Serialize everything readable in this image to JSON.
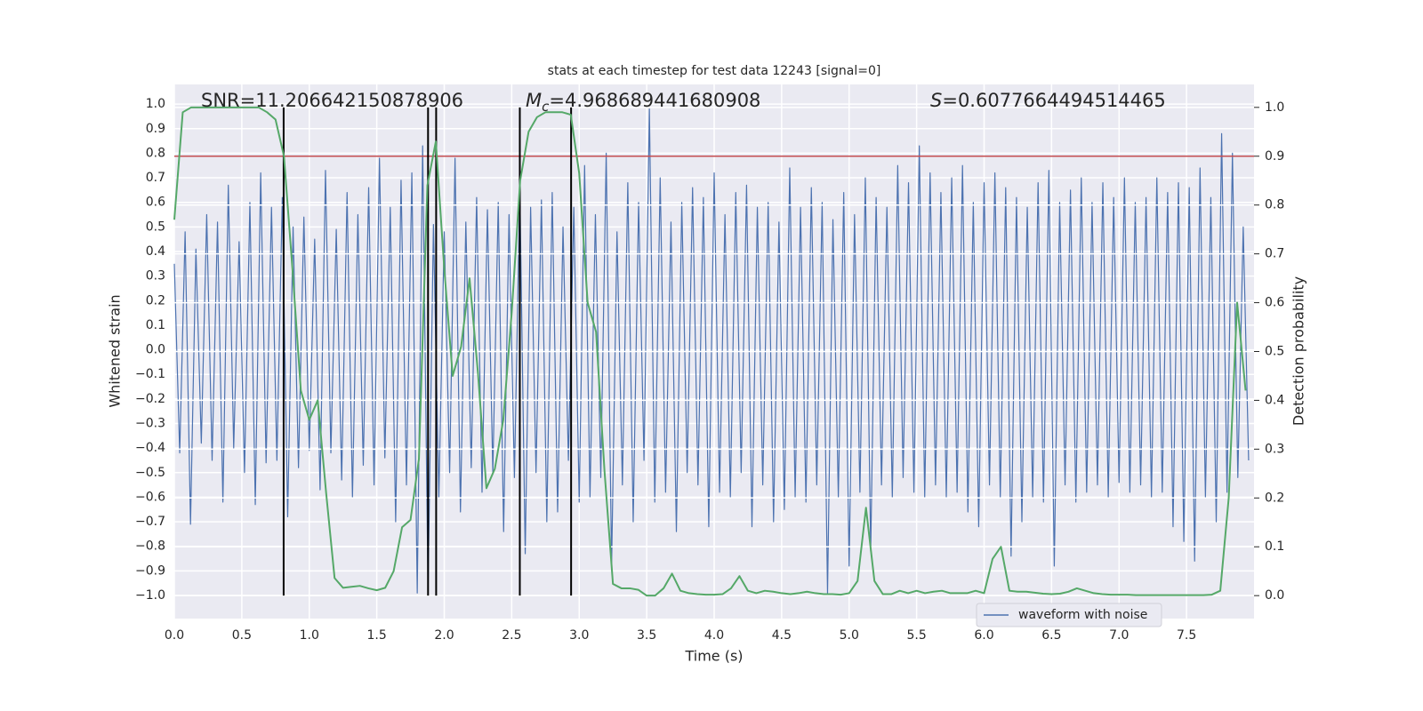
{
  "chart_data": {
    "type": "line",
    "title": "stats at each timestep for test data 12243 [signal=0]",
    "xlabel": "Time (s)",
    "ylabel": "Whitened strain",
    "y2label": "Detection probability",
    "xlim": [
      0,
      8
    ],
    "ylim": [
      -1.094,
      1.08
    ],
    "y2lim": [
      -0.047,
      1.047
    ],
    "xticks": [
      {
        "value": 0,
        "label": "0.0"
      },
      {
        "value": 0.5,
        "label": "0.5"
      },
      {
        "value": 1,
        "label": "1.0"
      },
      {
        "value": 1.5,
        "label": "1.5"
      },
      {
        "value": 2,
        "label": "2.0"
      },
      {
        "value": 2.5,
        "label": "2.5"
      },
      {
        "value": 3,
        "label": "3.0"
      },
      {
        "value": 3.5,
        "label": "3.5"
      },
      {
        "value": 4,
        "label": "4.0"
      },
      {
        "value": 4.5,
        "label": "4.5"
      },
      {
        "value": 5,
        "label": "5.0"
      },
      {
        "value": 5.5,
        "label": "5.5"
      },
      {
        "value": 6,
        "label": "6.0"
      },
      {
        "value": 6.5,
        "label": "6.5"
      },
      {
        "value": 7,
        "label": "7.0"
      },
      {
        "value": 7.5,
        "label": "7.5"
      }
    ],
    "yticks": [
      {
        "value": -1,
        "label": "−1.0"
      },
      {
        "value": -0.9,
        "label": "−0.9"
      },
      {
        "value": -0.8,
        "label": "−0.8"
      },
      {
        "value": -0.7,
        "label": "−0.7"
      },
      {
        "value": -0.6,
        "label": "−0.6"
      },
      {
        "value": -0.5,
        "label": "−0.5"
      },
      {
        "value": -0.4,
        "label": "−0.4"
      },
      {
        "value": -0.3,
        "label": "−0.3"
      },
      {
        "value": -0.2,
        "label": "−0.2"
      },
      {
        "value": -0.1,
        "label": "−0.1"
      },
      {
        "value": 0,
        "label": "0.0"
      },
      {
        "value": 0.1,
        "label": "0.1"
      },
      {
        "value": 0.2,
        "label": "0.2"
      },
      {
        "value": 0.3,
        "label": "0.3"
      },
      {
        "value": 0.4,
        "label": "0.4"
      },
      {
        "value": 0.5,
        "label": "0.5"
      },
      {
        "value": 0.6,
        "label": "0.6"
      },
      {
        "value": 0.7,
        "label": "0.7"
      },
      {
        "value": 0.8,
        "label": "0.8"
      },
      {
        "value": 0.9,
        "label": "0.9"
      },
      {
        "value": 1,
        "label": "1.0"
      }
    ],
    "y2ticks": [
      {
        "value": 0,
        "label": "0.0"
      },
      {
        "value": 0.1,
        "label": "0.1"
      },
      {
        "value": 0.2,
        "label": "0.2"
      },
      {
        "value": 0.3,
        "label": "0.3"
      },
      {
        "value": 0.4,
        "label": "0.4"
      },
      {
        "value": 0.5,
        "label": "0.5"
      },
      {
        "value": 0.6,
        "label": "0.6"
      },
      {
        "value": 0.7,
        "label": "0.7"
      },
      {
        "value": 0.8,
        "label": "0.8"
      },
      {
        "value": 0.9,
        "label": "0.9"
      },
      {
        "value": 1,
        "label": "1.0"
      }
    ],
    "grid": true,
    "legend": "lower right",
    "annotations": [
      {
        "text": "SNR=11.206642150878906"
      },
      {
        "symbol": "M",
        "subscript": "c",
        "text": "=4.968689441680908"
      },
      {
        "symbol": "S",
        "text": "=0.6077664494514465"
      }
    ],
    "threshold": {
      "axis": "y2",
      "value": 0.9,
      "color": "#c44e52"
    },
    "vlines": {
      "x": [
        0.81,
        1.88,
        1.94,
        2.56,
        2.94
      ],
      "y2range": [
        0,
        1
      ],
      "color": "#000000"
    },
    "series": [
      {
        "name": "waveform with noise",
        "color": "#4c72b0",
        "axis": "y",
        "x": [
          0,
          0.04,
          0.08,
          0.12,
          0.16,
          0.2,
          0.24,
          0.28,
          0.32,
          0.36,
          0.4,
          0.44,
          0.48,
          0.52,
          0.56,
          0.6,
          0.64,
          0.68,
          0.72,
          0.76,
          0.8,
          0.84,
          0.88,
          0.92,
          0.96,
          1,
          1.04,
          1.08,
          1.12,
          1.16,
          1.2,
          1.24,
          1.28,
          1.32,
          1.36,
          1.4,
          1.44,
          1.48,
          1.52,
          1.56,
          1.6,
          1.64,
          1.68,
          1.72,
          1.76,
          1.8,
          1.84,
          1.88,
          1.92,
          1.96,
          2,
          2.04,
          2.08,
          2.12,
          2.16,
          2.2,
          2.24,
          2.28,
          2.32,
          2.36,
          2.4,
          2.44,
          2.48,
          2.52,
          2.56,
          2.6,
          2.64,
          2.68,
          2.72,
          2.76,
          2.8,
          2.84,
          2.88,
          2.92,
          2.96,
          3,
          3.04,
          3.08,
          3.12,
          3.16,
          3.2,
          3.24,
          3.28,
          3.32,
          3.36,
          3.4,
          3.44,
          3.48,
          3.52,
          3.56,
          3.6,
          3.64,
          3.68,
          3.72,
          3.76,
          3.8,
          3.84,
          3.88,
          3.92,
          3.96,
          4,
          4.04,
          4.08,
          4.12,
          4.16,
          4.2,
          4.24,
          4.28,
          4.32,
          4.36,
          4.4,
          4.44,
          4.48,
          4.52,
          4.56,
          4.6,
          4.64,
          4.68,
          4.72,
          4.76,
          4.8,
          4.84,
          4.88,
          4.92,
          4.96,
          5,
          5.04,
          5.08,
          5.12,
          5.16,
          5.2,
          5.24,
          5.28,
          5.32,
          5.36,
          5.4,
          5.44,
          5.48,
          5.52,
          5.56,
          5.6,
          5.64,
          5.68,
          5.72,
          5.76,
          5.8,
          5.84,
          5.88,
          5.92,
          5.96,
          6,
          6.04,
          6.08,
          6.12,
          6.16,
          6.2,
          6.24,
          6.28,
          6.32,
          6.36,
          6.4,
          6.44,
          6.48,
          6.52,
          6.56,
          6.6,
          6.64,
          6.68,
          6.72,
          6.76,
          6.8,
          6.84,
          6.88,
          6.92,
          6.96,
          7,
          7.04,
          7.08,
          7.12,
          7.16,
          7.2,
          7.24,
          7.28,
          7.32,
          7.36,
          7.4,
          7.44,
          7.48,
          7.52,
          7.56,
          7.6,
          7.64,
          7.68,
          7.72,
          7.76,
          7.8,
          7.84,
          7.88,
          7.92,
          7.96
        ],
        "values": [
          0.35,
          -0.42,
          0.48,
          -0.71,
          0.41,
          -0.38,
          0.55,
          -0.45,
          0.52,
          -0.62,
          0.67,
          -0.4,
          0.44,
          -0.5,
          0.6,
          -0.63,
          0.72,
          -0.46,
          0.58,
          -0.45,
          0.62,
          -0.68,
          0.5,
          -0.48,
          0.54,
          -0.41,
          0.45,
          -0.57,
          0.73,
          -0.42,
          0.49,
          -0.53,
          0.64,
          -0.6,
          0.55,
          -0.47,
          0.66,
          -0.55,
          0.78,
          -0.44,
          0.58,
          -0.7,
          0.69,
          -0.55,
          0.72,
          -0.99,
          0.83,
          -0.98,
          0.51,
          -0.6,
          0.48,
          -0.5,
          0.78,
          -0.66,
          0.52,
          -0.48,
          0.62,
          -0.58,
          0.57,
          -0.5,
          0.6,
          -0.74,
          0.55,
          -0.52,
          0.66,
          -0.83,
          0.58,
          -0.5,
          0.61,
          -0.7,
          0.64,
          -0.66,
          0.5,
          -0.45,
          0.58,
          -0.62,
          0.75,
          -0.6,
          0.55,
          -0.52,
          0.8,
          -0.88,
          0.48,
          -0.55,
          0.68,
          -0.7,
          0.6,
          -0.45,
          0.98,
          -0.62,
          0.7,
          -0.58,
          0.52,
          -0.74,
          0.6,
          -0.5,
          0.66,
          -0.55,
          0.62,
          -0.72,
          0.72,
          -0.58,
          0.55,
          -0.6,
          0.64,
          -0.5,
          0.67,
          -0.72,
          0.58,
          -0.55,
          0.6,
          -0.7,
          0.52,
          -0.65,
          0.74,
          -0.6,
          0.58,
          -0.62,
          0.66,
          -0.55,
          0.6,
          -0.99,
          0.53,
          -0.6,
          0.64,
          -0.88,
          0.55,
          -0.58,
          0.7,
          -0.82,
          0.62,
          -0.55,
          0.58,
          -0.6,
          0.75,
          -0.52,
          0.68,
          -0.58,
          0.83,
          -0.6,
          0.72,
          -0.55,
          0.64,
          -0.6,
          0.7,
          -0.58,
          0.75,
          -0.66,
          0.6,
          -0.72,
          0.68,
          -0.55,
          0.72,
          -0.6,
          0.66,
          -0.84,
          0.62,
          -0.7,
          0.58,
          -0.6,
          0.68,
          -0.62,
          0.73,
          -0.88,
          0.6,
          -0.55,
          0.65,
          -0.62,
          0.7,
          -0.58,
          0.6,
          -0.55,
          0.68,
          -0.6,
          0.62,
          -0.54,
          0.7,
          -0.58,
          0.6,
          -0.55,
          0.62,
          -0.6,
          0.7,
          -0.58,
          0.64,
          -0.72,
          0.68,
          -0.78,
          0.66,
          -0.86,
          0.74,
          -0.6,
          0.62,
          -0.7,
          0.88,
          -0.58,
          0.8,
          -0.52,
          0.5,
          -0.45
        ]
      },
      {
        "color": "#55a868",
        "axis": "y2",
        "x": [
          0,
          0.0625,
          0.125,
          0.1875,
          0.25,
          0.3125,
          0.375,
          0.4375,
          0.5,
          0.5625,
          0.625,
          0.6875,
          0.75,
          0.8125,
          0.875,
          0.9375,
          1,
          1.0625,
          1.125,
          1.1875,
          1.25,
          1.3125,
          1.375,
          1.4375,
          1.5,
          1.5625,
          1.625,
          1.6875,
          1.75,
          1.8125,
          1.875,
          1.9375,
          2,
          2.0625,
          2.125,
          2.1875,
          2.25,
          2.3125,
          2.375,
          2.4375,
          2.5,
          2.5625,
          2.625,
          2.6875,
          2.75,
          2.8125,
          2.875,
          2.9375,
          3,
          3.0625,
          3.125,
          3.1875,
          3.25,
          3.3125,
          3.375,
          3.4375,
          3.5,
          3.5625,
          3.625,
          3.6875,
          3.75,
          3.8125,
          3.875,
          3.9375,
          4,
          4.0625,
          4.125,
          4.1875,
          4.25,
          4.3125,
          4.375,
          4.4375,
          4.5,
          4.5625,
          4.625,
          4.6875,
          4.75,
          4.8125,
          4.875,
          4.9375,
          5,
          5.0625,
          5.125,
          5.1875,
          5.25,
          5.3125,
          5.375,
          5.4375,
          5.5,
          5.5625,
          5.625,
          5.6875,
          5.75,
          5.8125,
          5.875,
          5.9375,
          6,
          6.0625,
          6.125,
          6.1875,
          6.25,
          6.3125,
          6.375,
          6.4375,
          6.5,
          6.5625,
          6.625,
          6.6875,
          6.75,
          6.8125,
          6.875,
          6.9375,
          7,
          7.0625,
          7.125,
          7.1875,
          7.25,
          7.3125,
          7.375,
          7.4375,
          7.5,
          7.5625,
          7.625,
          7.6875,
          7.75,
          7.8125,
          7.875,
          7.9375
        ],
        "values": [
          0.77,
          0.99,
          1,
          1,
          1,
          1,
          1,
          1,
          1,
          1,
          1,
          0.99,
          0.975,
          0.9,
          0.67,
          0.42,
          0.36,
          0.4,
          0.21,
          0.036,
          0.016,
          0.018,
          0.02,
          0.015,
          0.011,
          0.016,
          0.05,
          0.14,
          0.155,
          0.28,
          0.84,
          0.93,
          0.67,
          0.45,
          0.51,
          0.65,
          0.455,
          0.22,
          0.26,
          0.36,
          0.58,
          0.85,
          0.95,
          0.98,
          0.99,
          0.99,
          0.99,
          0.985,
          0.865,
          0.6,
          0.54,
          0.255,
          0.024,
          0.015,
          0.015,
          0.012,
          0,
          0,
          0.015,
          0.045,
          0.01,
          0.005,
          0.003,
          0.002,
          0.002,
          0.003,
          0.015,
          0.04,
          0.01,
          0.005,
          0.01,
          0.008,
          0.005,
          0.003,
          0.005,
          0.008,
          0.005,
          0.003,
          0.003,
          0.002,
          0.005,
          0.03,
          0.18,
          0.03,
          0.003,
          0.003,
          0.01,
          0.005,
          0.01,
          0.005,
          0.008,
          0.01,
          0.005,
          0.005,
          0.005,
          0.01,
          0.005,
          0.075,
          0.1,
          0.01,
          0.008,
          0.008,
          0.006,
          0.004,
          0.003,
          0.004,
          0.008,
          0.015,
          0.01,
          0.005,
          0.003,
          0.002,
          0.002,
          0.002,
          0.001,
          0.001,
          0.001,
          0.001,
          0.001,
          0.001,
          0.001,
          0.001,
          0.001,
          0.002,
          0.01,
          0.2,
          0.6,
          0.42
        ]
      }
    ]
  }
}
